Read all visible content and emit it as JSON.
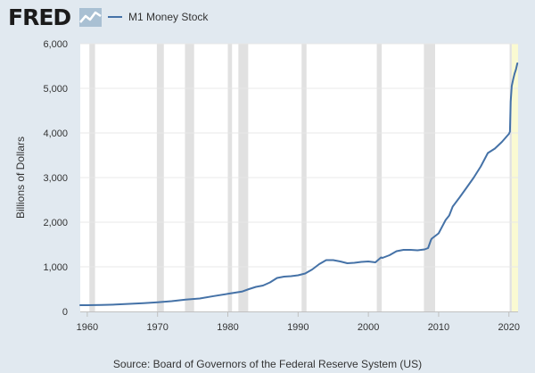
{
  "brand": {
    "logo_text": "FRED",
    "logo_icon": "fred-chart-icon"
  },
  "colors": {
    "background": "#e1e9f0",
    "plot_background": "#ffffff",
    "series_line": "#4572a7",
    "recession_band": "#e1e1e1",
    "preliminary_band": "#fafad2",
    "gridline": "#e8e8e8"
  },
  "source_text": "Source: Board of Governors of the Federal Reserve System (US)",
  "chart_data": {
    "type": "line",
    "title": "",
    "xlabel": "",
    "ylabel": "Billions of Dollars",
    "xlim": [
      1959,
      2021.3
    ],
    "ylim": [
      0,
      6000
    ],
    "grid": true,
    "legend_placement": "top-left",
    "x_ticks": [
      1960,
      1970,
      1980,
      1990,
      2000,
      2010,
      2020
    ],
    "x_tick_labels": [
      "1960",
      "1970",
      "1980",
      "1990",
      "2000",
      "2010",
      "2020"
    ],
    "y_ticks": [
      0,
      1000,
      2000,
      3000,
      4000,
      5000,
      6000
    ],
    "y_tick_labels": [
      "0",
      "1,000",
      "2,000",
      "3,000",
      "4,000",
      "5,000",
      "6,000"
    ],
    "shaded_periods": [
      [
        1960.3,
        1961.1
      ],
      [
        1969.9,
        1970.9
      ],
      [
        1973.9,
        1975.2
      ],
      [
        1980.0,
        1980.6
      ],
      [
        1981.5,
        1982.9
      ],
      [
        1990.5,
        1991.2
      ],
      [
        2001.2,
        2001.9
      ],
      [
        2007.9,
        2009.5
      ],
      [
        2020.1,
        2020.4
      ]
    ],
    "preliminary_period": [
      2020.4,
      2021.3
    ],
    "series": [
      {
        "name": "M1 Money Stock",
        "x": [
          1959,
          1960,
          1962,
          1964,
          1966,
          1968,
          1970,
          1972,
          1974,
          1976,
          1978,
          1980,
          1982,
          1983,
          1984,
          1985,
          1986,
          1987,
          1988,
          1989,
          1990,
          1991,
          1992,
          1993,
          1994,
          1995,
          1996,
          1997,
          1998,
          1999,
          2000,
          2001,
          2001.8,
          2002,
          2003,
          2004,
          2005,
          2006,
          2007,
          2008,
          2008.5,
          2008.9,
          2009,
          2010,
          2011,
          2011.5,
          2012,
          2013,
          2014,
          2015,
          2016,
          2017,
          2018,
          2019,
          2020.0,
          2020.15,
          2020.25,
          2020.4,
          2020.6,
          2020.8,
          2021.0,
          2021.2
        ],
        "y": [
          140,
          140,
          145,
          155,
          170,
          185,
          205,
          230,
          265,
          290,
          345,
          395,
          445,
          500,
          550,
          580,
          650,
          750,
          780,
          790,
          810,
          850,
          940,
          1060,
          1150,
          1150,
          1120,
          1080,
          1090,
          1110,
          1120,
          1100,
          1210,
          1200,
          1260,
          1350,
          1380,
          1380,
          1370,
          1390,
          1420,
          1600,
          1630,
          1750,
          2050,
          2150,
          2350,
          2560,
          2780,
          3000,
          3250,
          3550,
          3650,
          3800,
          3980,
          4030,
          4700,
          5050,
          5200,
          5330,
          5420,
          5560
        ]
      }
    ]
  }
}
